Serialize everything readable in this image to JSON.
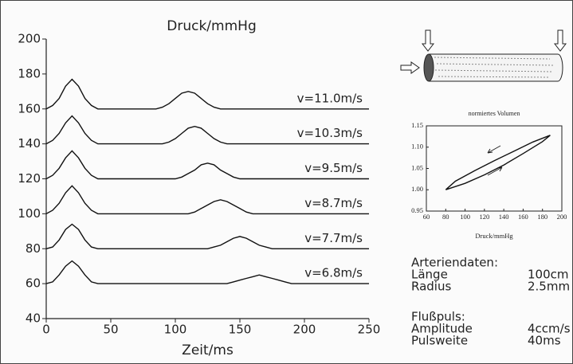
{
  "chart_data": [
    {
      "type": "line",
      "title": "Druck/mmHg",
      "xlabel": "Zeit/ms",
      "xlim": [
        0,
        250
      ],
      "xticks": [
        0,
        50,
        100,
        150,
        200,
        250
      ],
      "ylim": [
        40,
        200
      ],
      "yticks": [
        40,
        60,
        80,
        100,
        120,
        140,
        160,
        180,
        200
      ],
      "x": [
        0,
        5,
        10,
        15,
        20,
        25,
        30,
        35,
        40,
        45,
        50,
        55,
        60,
        65,
        70,
        75,
        80,
        85,
        90,
        95,
        100,
        105,
        110,
        115,
        120,
        125,
        130,
        135,
        140,
        145,
        150,
        155,
        160,
        165,
        170,
        175,
        180,
        185,
        190,
        195,
        200,
        205,
        210,
        215,
        220,
        225,
        230,
        235,
        240,
        245,
        250
      ],
      "series": [
        {
          "name": "v=11.0m/s",
          "color": "#111111",
          "values": [
            160,
            162,
            166,
            173,
            177,
            173,
            166,
            162,
            160,
            160,
            160,
            160,
            160,
            160,
            160,
            160,
            160,
            160,
            161,
            163,
            166,
            169,
            170,
            169,
            166,
            163,
            161,
            160,
            160,
            160,
            160,
            160,
            160,
            160,
            160,
            160,
            160,
            160,
            160,
            160,
            160,
            160,
            160,
            160,
            160,
            160,
            160,
            160,
            160,
            160,
            160
          ]
        },
        {
          "name": "v=10.3m/s",
          "color": "#111111",
          "values": [
            140,
            142,
            146,
            152,
            156,
            152,
            146,
            142,
            140,
            140,
            140,
            140,
            140,
            140,
            140,
            140,
            140,
            140,
            140,
            141,
            143,
            146,
            149,
            150,
            149,
            146,
            143,
            141,
            140,
            140,
            140,
            140,
            140,
            140,
            140,
            140,
            140,
            140,
            140,
            140,
            140,
            140,
            140,
            140,
            140,
            140,
            140,
            140,
            140,
            140,
            140
          ]
        },
        {
          "name": "v=9.5m/s",
          "color": "#111111",
          "values": [
            120,
            122,
            126,
            132,
            136,
            132,
            126,
            122,
            120,
            120,
            120,
            120,
            120,
            120,
            120,
            120,
            120,
            120,
            120,
            120,
            120,
            121,
            123,
            125,
            128,
            129,
            128,
            125,
            123,
            121,
            120,
            120,
            120,
            120,
            120,
            120,
            120,
            120,
            120,
            120,
            120,
            120,
            120,
            120,
            120,
            120,
            120,
            120,
            120,
            120,
            120
          ]
        },
        {
          "name": "v=8.7m/s",
          "color": "#111111",
          "values": [
            100,
            102,
            106,
            112,
            116,
            112,
            106,
            102,
            100,
            100,
            100,
            100,
            100,
            100,
            100,
            100,
            100,
            100,
            100,
            100,
            100,
            100,
            100,
            101,
            103,
            105,
            107,
            108,
            107,
            105,
            103,
            101,
            100,
            100,
            100,
            100,
            100,
            100,
            100,
            100,
            100,
            100,
            100,
            100,
            100,
            100,
            100,
            100,
            100,
            100,
            100
          ]
        },
        {
          "name": "v=7.7m/s",
          "color": "#111111",
          "values": [
            80,
            81,
            85,
            91,
            94,
            91,
            85,
            81,
            80,
            80,
            80,
            80,
            80,
            80,
            80,
            80,
            80,
            80,
            80,
            80,
            80,
            80,
            80,
            80,
            80,
            80,
            81,
            82,
            84,
            86,
            87,
            86,
            84,
            82,
            81,
            80,
            80,
            80,
            80,
            80,
            80,
            80,
            80,
            80,
            80,
            80,
            80,
            80,
            80,
            80,
            80
          ]
        },
        {
          "name": "v=6.8m/s",
          "color": "#111111",
          "values": [
            60,
            61,
            65,
            70,
            73,
            70,
            65,
            61,
            60,
            60,
            60,
            60,
            60,
            60,
            60,
            60,
            60,
            60,
            60,
            60,
            60,
            60,
            60,
            60,
            60,
            60,
            60,
            60,
            60,
            61,
            62,
            63,
            64,
            65,
            64,
            63,
            62,
            61,
            60,
            60,
            60,
            60,
            60,
            60,
            60,
            60,
            60,
            60,
            60,
            60,
            60
          ]
        }
      ]
    },
    {
      "type": "line",
      "title": "normiertes Volumen",
      "xlabel": "Druck/mmHg",
      "xlim": [
        60,
        200
      ],
      "xticks": [
        60,
        80,
        100,
        120,
        140,
        160,
        180,
        200
      ],
      "ylim": [
        0.95,
        1.15
      ],
      "yticks": [
        0.95,
        {
          "value": 1,
          "label": "1.00"
        },
        1.05,
        {
          "value": 1.1,
          "label": "1.10"
        },
        1.15
      ],
      "x": [
        80,
        100,
        120,
        140,
        160,
        180,
        188,
        170,
        150,
        130,
        110,
        90,
        80
      ],
      "series": [
        {
          "color": "#111111",
          "values": [
            1.0,
            1.015,
            1.035,
            1.058,
            1.085,
            1.113,
            1.128,
            1.112,
            1.09,
            1.068,
            1.045,
            1.02,
            1.0
          ]
        }
      ]
    }
  ],
  "info": [
    {
      "title": "Arteriendaten:",
      "rows": [
        [
          "Länge",
          "100cm"
        ],
        [
          "Radius",
          "2.5mm"
        ]
      ]
    },
    {
      "title": "Flußpuls:",
      "rows": [
        [
          "Amplitude",
          "4ccm/s"
        ],
        [
          "Pulsweite",
          "40ms"
        ]
      ]
    }
  ]
}
